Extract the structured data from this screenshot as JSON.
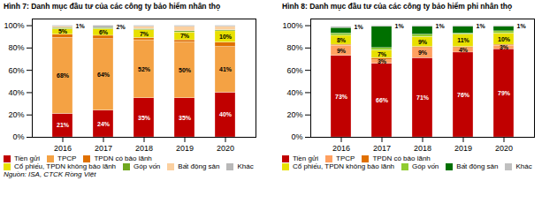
{
  "chart_data": [
    {
      "type": "bar",
      "stacked": true,
      "data_labels": true,
      "grid": false,
      "legend": "bottom",
      "title": "Hình 7: Danh mục đầu tư của các công ty bảo hiểm nhân thọ",
      "caption": "Nguồn: ISA, CTCK Rồng Việt",
      "categories": [
        "2016",
        "2017",
        "2018",
        "2019",
        "2020"
      ],
      "ylim": [
        0,
        106
      ],
      "yticks": [
        {
          "value": 0,
          "label": "0%"
        },
        {
          "value": 20,
          "label": "20%"
        },
        {
          "value": 40,
          "label": "40%"
        },
        {
          "value": 60,
          "label": "60%"
        },
        {
          "value": 80,
          "label": "80%"
        },
        {
          "value": 100,
          "label": "100%"
        }
      ],
      "series": [
        {
          "name": "Tiền gửi",
          "color": "#c00000",
          "values": [
            21,
            24,
            35,
            35,
            40
          ],
          "value_labels": [
            "21%",
            "24%",
            "35%",
            "35%",
            "40%"
          ]
        },
        {
          "name": "TPCP",
          "color": "#f4a244",
          "values": [
            68,
            64,
            52,
            50,
            41
          ],
          "value_labels": [
            "68%",
            "64%",
            "52%",
            "50%",
            "41%"
          ]
        },
        {
          "name": "TPDN có bảo lãnh",
          "color": "#e07000",
          "values": [
            3,
            3,
            2,
            2,
            4
          ]
        },
        {
          "name": "Cổ phiếu, TPDN không bảo lãnh",
          "color": "#e8e000",
          "values": [
            5,
            6,
            7,
            7,
            10
          ],
          "value_labels": [
            "5%",
            "6%",
            "7%",
            "7%",
            "10%"
          ]
        },
        {
          "name": "Góp vốn",
          "color": "#70a820",
          "values": [
            1,
            1,
            1,
            1,
            1
          ]
        },
        {
          "name": "Bất động sản",
          "color": "#fbd0a0",
          "values": [
            1,
            0,
            2,
            4,
            3
          ]
        },
        {
          "name": "Khác",
          "color": "#b8b8b8",
          "values": [
            1,
            2,
            1,
            1,
            1
          ],
          "value_labels": [
            "1%",
            "2%",
            null,
            null,
            null
          ]
        }
      ]
    },
    {
      "type": "bar",
      "stacked": true,
      "data_labels": true,
      "grid": false,
      "legend": "bottom",
      "title": "Hình 8: Danh mục đầu tư của các công ty bảo hiểm phi nhân thọ",
      "categories": [
        "2016",
        "2017",
        "2018",
        "2019",
        "2020"
      ],
      "ylim": [
        0,
        106
      ],
      "yticks": [
        {
          "value": 0,
          "label": "0%"
        },
        {
          "value": 20,
          "label": "20%"
        },
        {
          "value": 40,
          "label": "40%"
        },
        {
          "value": 60,
          "label": "60%"
        },
        {
          "value": 80,
          "label": "80%"
        },
        {
          "value": 100,
          "label": "100%"
        }
      ],
      "series": [
        {
          "name": "Tiền gửi",
          "color": "#c00000",
          "values": [
            73,
            66,
            71,
            76,
            79
          ],
          "value_labels": [
            "73%",
            "66%",
            "71%",
            "76%",
            "79%"
          ]
        },
        {
          "name": "TPCP",
          "color": "#ffa060",
          "values": [
            9,
            3,
            9,
            4,
            3
          ],
          "value_labels": [
            "9%",
            "3%",
            "9%",
            "4%",
            "3%"
          ]
        },
        {
          "name": "TPDN có bảo lãnh",
          "color": "#e07000",
          "values": [
            1,
            2,
            1,
            1,
            1
          ]
        },
        {
          "name": "Cổ phiếu, TPDN không bảo lãnh",
          "color": "#e8e000",
          "values": [
            8,
            7,
            9,
            11,
            10
          ],
          "value_labels": [
            "8%",
            "7%",
            "9%",
            "11%",
            "10%"
          ]
        },
        {
          "name": "Góp vốn",
          "color": "#90cc30",
          "values": [
            2,
            2,
            2,
            1,
            2
          ]
        },
        {
          "name": "Bất động sản",
          "color": "#007000",
          "values": [
            5,
            19,
            7,
            6,
            4
          ]
        },
        {
          "name": "Khác",
          "color": "#c0c0c0",
          "values": [
            1,
            1,
            1,
            1,
            1
          ],
          "value_labels": [
            "1%",
            "1%",
            "1%",
            "1%",
            "1%"
          ]
        }
      ]
    }
  ]
}
